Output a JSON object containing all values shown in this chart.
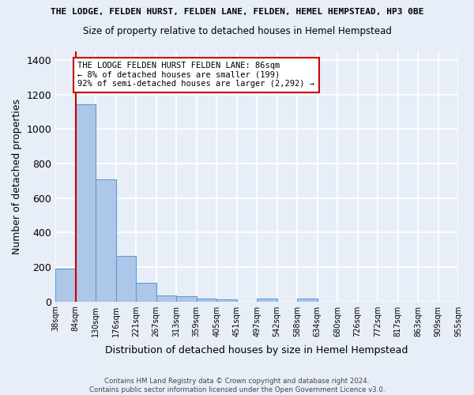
{
  "title": "THE LODGE, FELDEN HURST, FELDEN LANE, FELDEN, HEMEL HEMPSTEAD, HP3 0BE",
  "subtitle": "Size of property relative to detached houses in Hemel Hempstead",
  "xlabel": "Distribution of detached houses by size in Hemel Hempstead",
  "ylabel": "Number of detached properties",
  "footer_line1": "Contains HM Land Registry data © Crown copyright and database right 2024.",
  "footer_line2": "Contains public sector information licensed under the Open Government Licence v3.0.",
  "bin_labels": [
    "38sqm",
    "84sqm",
    "130sqm",
    "176sqm",
    "221sqm",
    "267sqm",
    "313sqm",
    "359sqm",
    "405sqm",
    "451sqm",
    "497sqm",
    "542sqm",
    "588sqm",
    "634sqm",
    "680sqm",
    "726sqm",
    "772sqm",
    "817sqm",
    "863sqm",
    "909sqm",
    "955sqm"
  ],
  "bar_heights": [
    190,
    1145,
    710,
    265,
    108,
    35,
    28,
    18,
    13,
    0,
    18,
    0,
    18,
    0,
    0,
    0,
    0,
    0,
    0,
    0
  ],
  "bar_color": "#aec6e8",
  "bar_edge_color": "#5a9fd4",
  "annotation_title": "THE LODGE FELDEN HURST FELDEN LANE: 86sqm",
  "annotation_line2": "← 8% of detached houses are smaller (199)",
  "annotation_line3": "92% of semi-detached houses are larger (2,292) →",
  "annotation_box_color": "#ffffff",
  "annotation_box_edge_color": "#cc0000",
  "ylim": [
    0,
    1450
  ],
  "background_color": "#e8eef8",
  "grid_color": "#ffffff"
}
